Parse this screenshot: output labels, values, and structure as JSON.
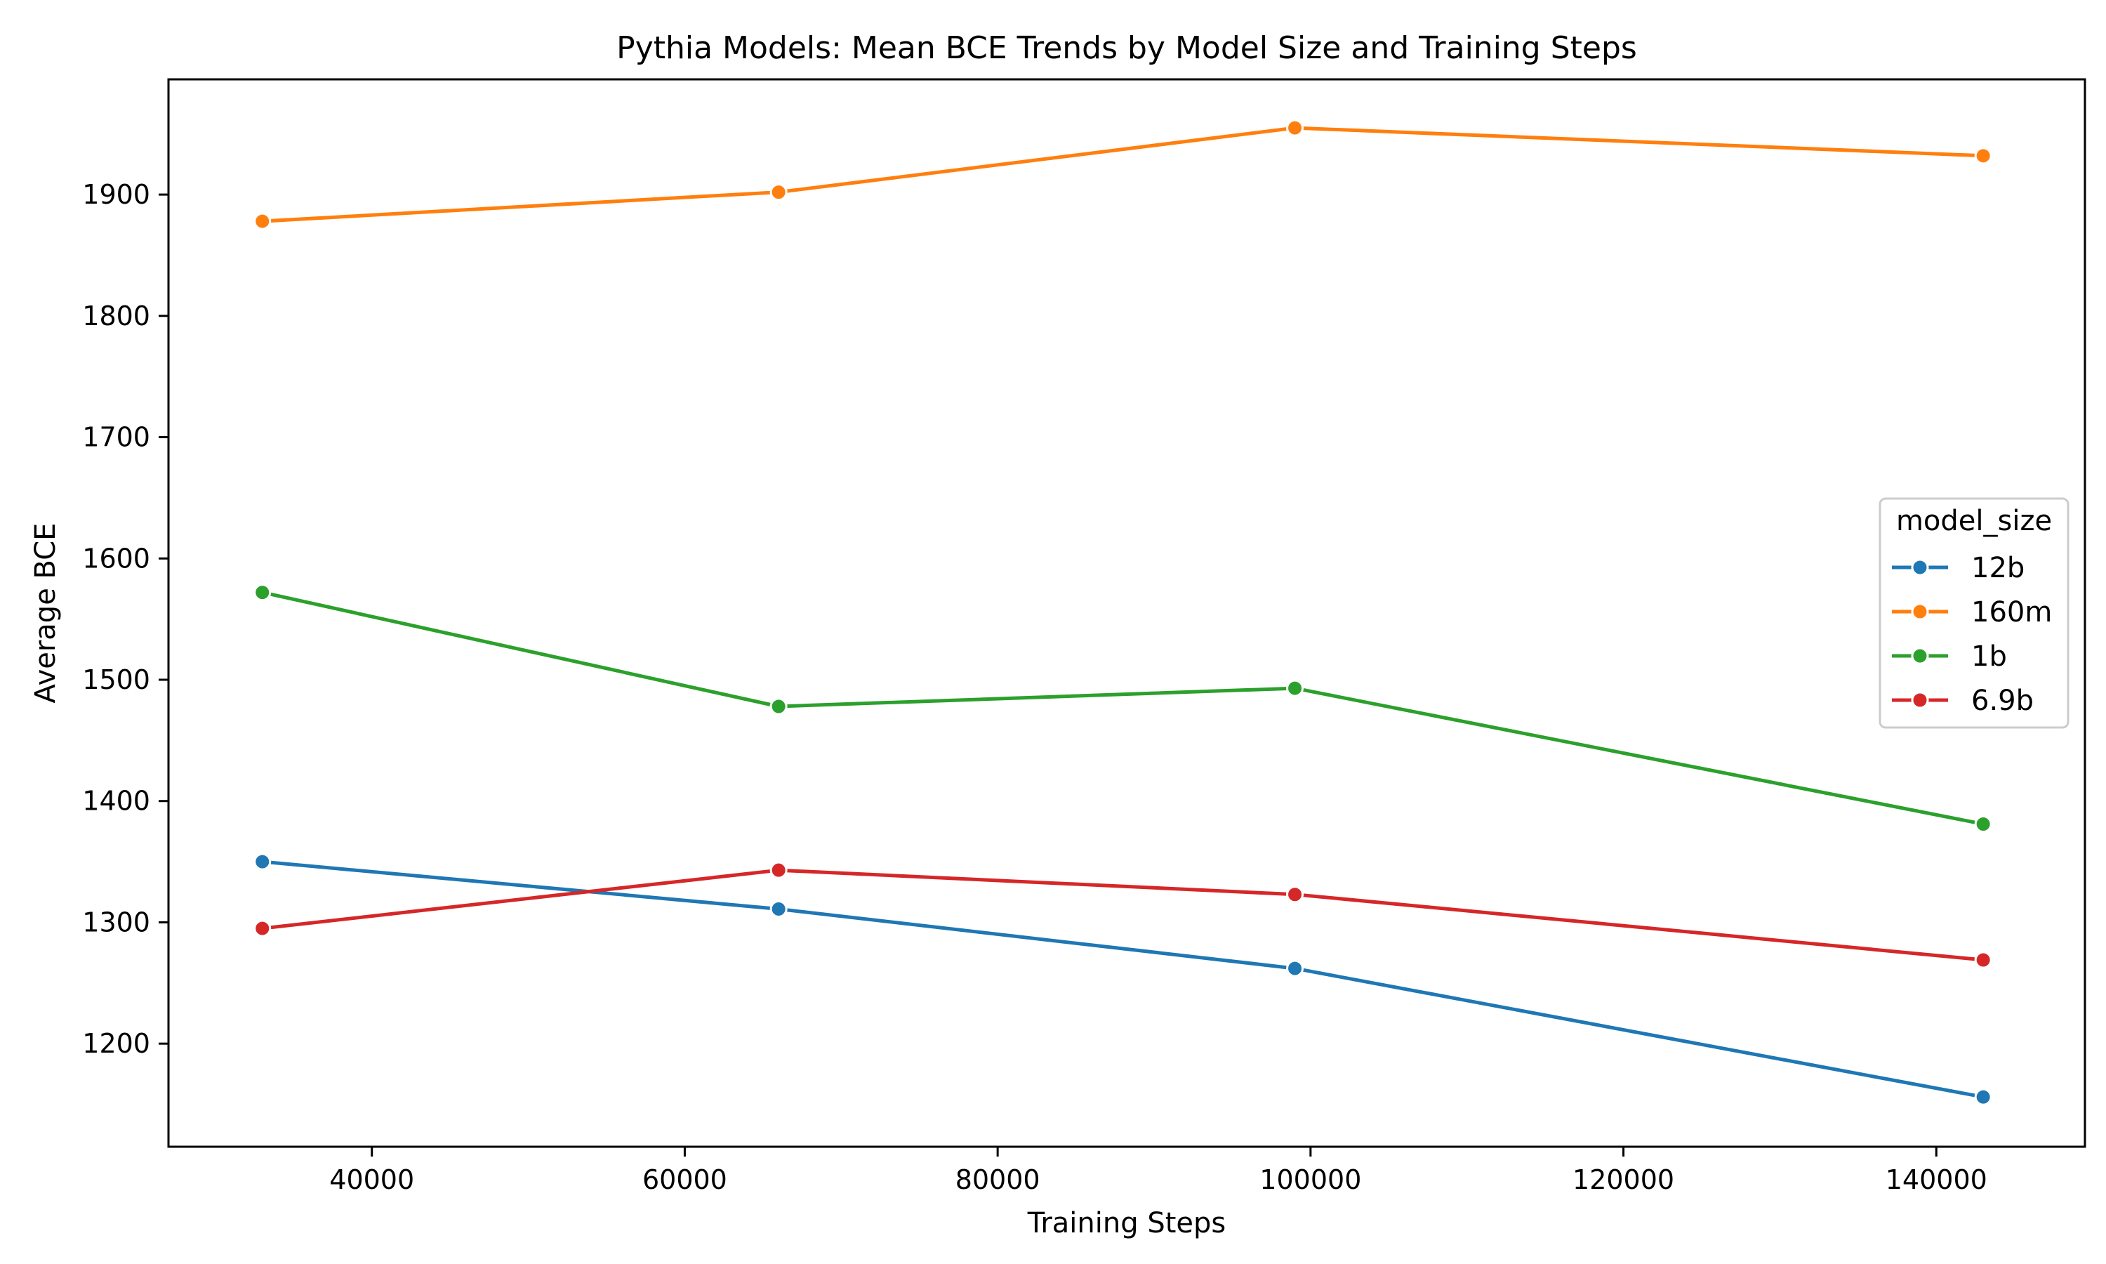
{
  "chart_data": {
    "type": "line",
    "title": "Pythia Models: Mean BCE Trends by Model Size and Training Steps",
    "xlabel": "Training Steps",
    "ylabel": "Average BCE",
    "x": [
      33000,
      66000,
      99000,
      143000
    ],
    "xlim": [
      27000,
      149500
    ],
    "ylim": [
      1115,
      1995
    ],
    "xticks": [
      40000,
      60000,
      80000,
      100000,
      120000,
      140000
    ],
    "yticks": [
      1200,
      1300,
      1400,
      1500,
      1600,
      1700,
      1800,
      1900
    ],
    "grid": false,
    "legend": {
      "title": "model_size",
      "position": "center-right"
    },
    "series": [
      {
        "name": "12b",
        "color": "#1f77b4",
        "values": [
          1350,
          1311,
          1262,
          1156
        ]
      },
      {
        "name": "160m",
        "color": "#ff7f0e",
        "values": [
          1878,
          1902,
          1955,
          1932
        ]
      },
      {
        "name": "1b",
        "color": "#2ca02c",
        "values": [
          1572,
          1478,
          1493,
          1381
        ]
      },
      {
        "name": "6.9b",
        "color": "#d62728",
        "values": [
          1295,
          1343,
          1323,
          1269
        ]
      }
    ]
  }
}
